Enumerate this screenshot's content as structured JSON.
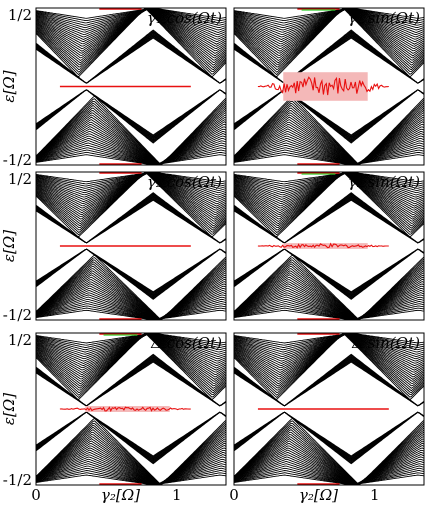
{
  "chart_data": [
    {
      "type": "line",
      "panel": "γ1 cos(Ωt)",
      "label": "γ₁ cos(Ωt)",
      "ylabel": "ε[Ω]",
      "ylim": [
        -0.5,
        0.5
      ],
      "xlim": [
        0,
        1.35
      ],
      "ytick_top": "1/2",
      "ytick_bottom": "-1/2",
      "xticks": [],
      "noisy_zero_mode": false,
      "noise_amplitude": 0.0
    },
    {
      "type": "line",
      "panel": "γ1 sin(Ωt)",
      "label": "γ₁ sin(Ωt)",
      "ylabel": "",
      "ylim": [
        -0.5,
        0.5
      ],
      "xlim": [
        0,
        1.35
      ],
      "ytick_top": "",
      "ytick_bottom": "",
      "xticks": [],
      "noisy_zero_mode": true,
      "noise_amplitude": 0.07
    },
    {
      "type": "line",
      "panel": "γ2 cos(Ωt)",
      "label": "γ₂ cos(Ωt)",
      "ylabel": "ε[Ω]",
      "ylim": [
        -0.5,
        0.5
      ],
      "xlim": [
        0,
        1.35
      ],
      "ytick_top": "1/2",
      "ytick_bottom": "-1/2",
      "xticks": [],
      "noisy_zero_mode": false,
      "noise_amplitude": 0.0
    },
    {
      "type": "line",
      "panel": "γ2 sin(Ωt)",
      "label": "γ₂ sin(Ωt)",
      "ylabel": "",
      "ylim": [
        -0.5,
        0.5
      ],
      "xlim": [
        0,
        1.35
      ],
      "ytick_top": "",
      "ytick_bottom": "",
      "xticks": [],
      "noisy_zero_mode": true,
      "noise_amplitude": 0.015
    },
    {
      "type": "line",
      "panel": "Δ cos(Ωt)",
      "label": "Δ cos(Ωt)",
      "ylabel": "ε[Ω]",
      "ylim": [
        -0.5,
        0.5
      ],
      "xlim": [
        0,
        1.35
      ],
      "ytick_top": "1/2",
      "ytick_bottom": "-1/2",
      "xticks": [
        "0",
        "1"
      ],
      "xlabel": "γ₂[Ω]",
      "noisy_zero_mode": true,
      "noise_amplitude": 0.015
    },
    {
      "type": "line",
      "panel": "Δ sin(Ωt)",
      "label": "Δ sin(Ωt)",
      "ylabel": "",
      "ylim": [
        -0.5,
        0.5
      ],
      "xlim": [
        0,
        1.35
      ],
      "ytick_top": "",
      "ytick_bottom": "",
      "xticks": [
        "0",
        "1"
      ],
      "xlabel": "γ₂[Ω]",
      "noisy_zero_mode": false,
      "noise_amplitude": 0.0
    }
  ],
  "colors": {
    "bands": "#000000",
    "zero_mode": "#e81010",
    "zero_mode_fill": "#f4b8b8",
    "edge_green": "#2fcf2f"
  }
}
